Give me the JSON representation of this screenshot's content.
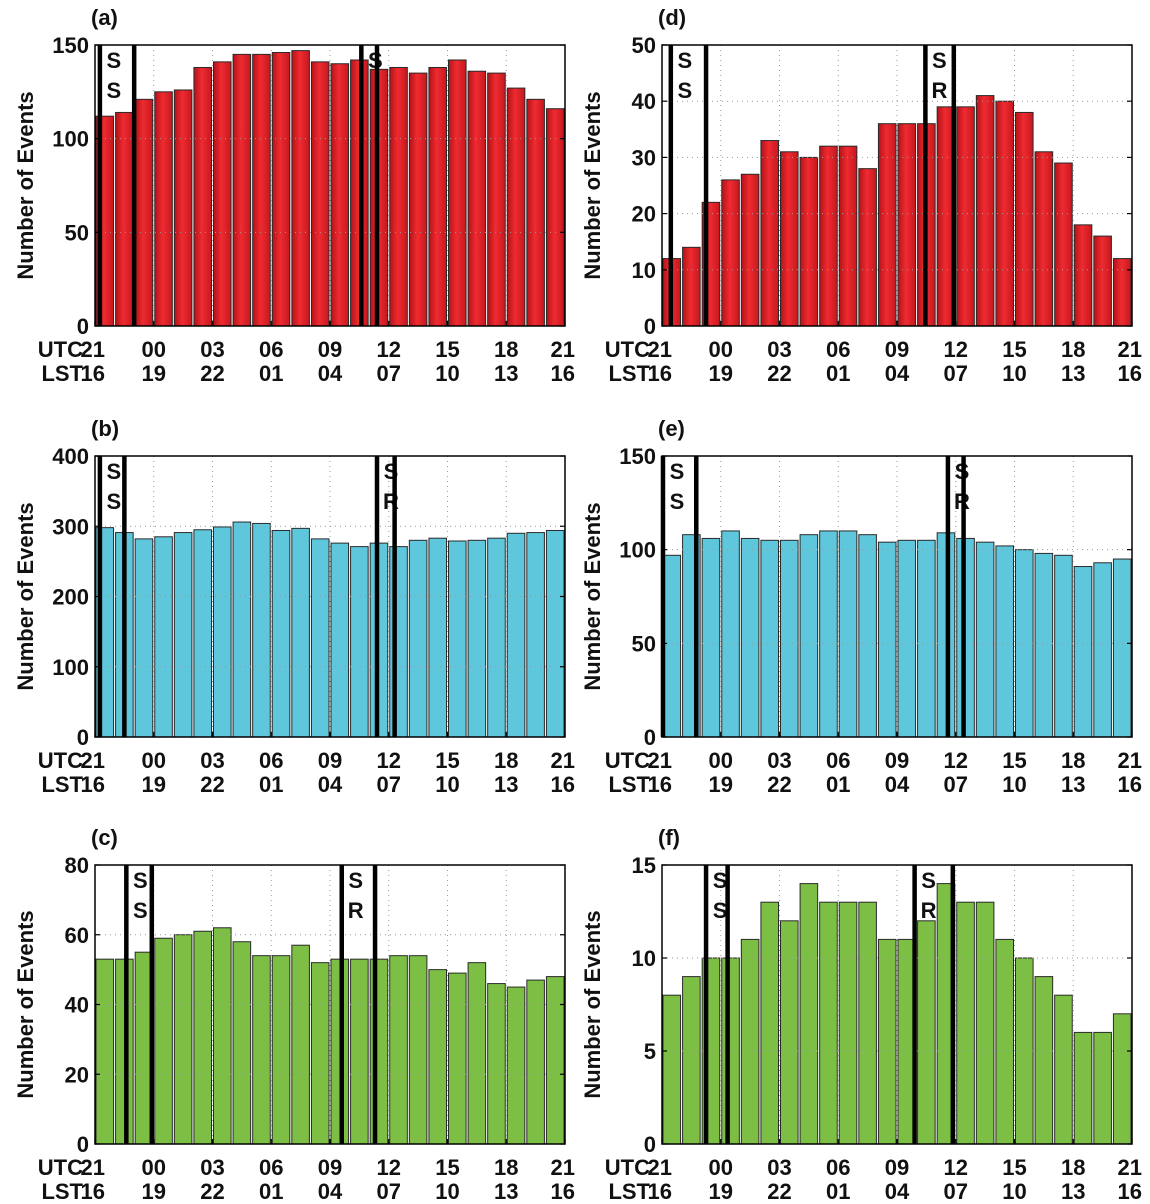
{
  "time_axis": {
    "utc_label": "UTC",
    "lst_label": "LST",
    "utc_ticks": [
      "21",
      "00",
      "03",
      "06",
      "09",
      "12",
      "15",
      "18",
      "21"
    ],
    "lst_ticks": [
      "16",
      "19",
      "22",
      "01",
      "04",
      "07",
      "10",
      "13",
      "16"
    ]
  },
  "chart_data": [
    {
      "panel": "(a)",
      "type": "bar",
      "ylabel": "Number of Events",
      "ylim": [
        0,
        150
      ],
      "yticks": [
        0,
        50,
        100,
        150
      ],
      "color": "#e8262c",
      "grid": true,
      "x_hours_utc": [
        21,
        22,
        23,
        0,
        1,
        2,
        3,
        4,
        5,
        6,
        7,
        8,
        9,
        10,
        11,
        12,
        13,
        14,
        15,
        16,
        17,
        18,
        19,
        20
      ],
      "values": [
        112,
        114,
        121,
        125,
        126,
        138,
        141,
        145,
        145,
        146,
        147,
        141,
        140,
        142,
        137,
        138,
        135,
        138,
        142,
        136,
        135,
        127,
        121,
        116
      ],
      "markers": [
        {
          "hour_utc": 21.25,
          "letters": [
            "S",
            "S"
          ]
        },
        {
          "hour_utc": 23.0,
          "letters": []
        },
        {
          "hour_utc": 10.6,
          "letters": [
            "S"
          ]
        },
        {
          "hour_utc": 11.4,
          "letters": []
        }
      ]
    },
    {
      "panel": "(b)",
      "type": "bar",
      "ylabel": "Number of Events",
      "ylim": [
        0,
        400
      ],
      "yticks": [
        0,
        100,
        200,
        300,
        400
      ],
      "color": "#5fc7dc",
      "grid": true,
      "x_hours_utc": [
        21,
        22,
        23,
        0,
        1,
        2,
        3,
        4,
        5,
        6,
        7,
        8,
        9,
        10,
        11,
        12,
        13,
        14,
        15,
        16,
        17,
        18,
        19,
        20
      ],
      "values": [
        298,
        291,
        282,
        285,
        291,
        295,
        299,
        306,
        304,
        294,
        297,
        282,
        276,
        271,
        276,
        271,
        280,
        283,
        279,
        280,
        283,
        290,
        291,
        294
      ],
      "markers": [
        {
          "hour_utc": 21.25,
          "letters": [
            "S",
            "S"
          ]
        },
        {
          "hour_utc": 22.5,
          "letters": []
        },
        {
          "hour_utc": 11.4,
          "letters": [
            "S",
            "R"
          ]
        },
        {
          "hour_utc": 12.3,
          "letters": []
        }
      ]
    },
    {
      "panel": "(c)",
      "type": "bar",
      "ylabel": "Number of Events",
      "ylim": [
        0,
        80
      ],
      "yticks": [
        0,
        20,
        40,
        60,
        80
      ],
      "color": "#7dbf44",
      "grid": true,
      "x_hours_utc": [
        21,
        22,
        23,
        0,
        1,
        2,
        3,
        4,
        5,
        6,
        7,
        8,
        9,
        10,
        11,
        12,
        13,
        14,
        15,
        16,
        17,
        18,
        19,
        20
      ],
      "values": [
        53,
        53,
        55,
        59,
        60,
        61,
        62,
        58,
        54,
        54,
        57,
        52,
        53,
        53,
        53,
        54,
        54,
        50,
        49,
        52,
        46,
        45,
        47,
        48
      ],
      "markers": [
        {
          "hour_utc": 22.6,
          "letters": [
            "S",
            "S"
          ]
        },
        {
          "hour_utc": 23.9,
          "letters": []
        },
        {
          "hour_utc": 9.6,
          "letters": [
            "S",
            "R"
          ]
        },
        {
          "hour_utc": 11.3,
          "letters": []
        }
      ]
    },
    {
      "panel": "(d)",
      "type": "bar",
      "ylabel": "Number of Events",
      "ylim": [
        0,
        50
      ],
      "yticks": [
        0,
        10,
        20,
        30,
        40,
        50
      ],
      "color": "#e8262c",
      "grid": true,
      "x_hours_utc": [
        21,
        22,
        23,
        0,
        1,
        2,
        3,
        4,
        5,
        6,
        7,
        8,
        9,
        10,
        11,
        12,
        13,
        14,
        15,
        16,
        17,
        18,
        19,
        20
      ],
      "values": [
        12,
        14,
        22,
        26,
        27,
        33,
        31,
        30,
        32,
        32,
        28,
        36,
        36,
        36,
        39,
        39,
        41,
        40,
        38,
        31,
        29,
        18,
        16,
        12
      ],
      "markers": [
        {
          "hour_utc": 21.45,
          "letters": [
            "S",
            "S"
          ]
        },
        {
          "hour_utc": 23.25,
          "letters": []
        },
        {
          "hour_utc": 10.45,
          "letters": [
            "S",
            "R"
          ]
        },
        {
          "hour_utc": 11.9,
          "letters": []
        }
      ]
    },
    {
      "panel": "(e)",
      "type": "bar",
      "ylabel": "Number of Events",
      "ylim": [
        0,
        150
      ],
      "yticks": [
        0,
        50,
        100,
        150
      ],
      "color": "#5fc7dc",
      "grid": true,
      "x_hours_utc": [
        21,
        22,
        23,
        0,
        1,
        2,
        3,
        4,
        5,
        6,
        7,
        8,
        9,
        10,
        11,
        12,
        13,
        14,
        15,
        16,
        17,
        18,
        19,
        20
      ],
      "values": [
        97,
        108,
        106,
        110,
        106,
        105,
        105,
        108,
        110,
        110,
        108,
        104,
        105,
        105,
        109,
        106,
        104,
        102,
        100,
        98,
        97,
        91,
        93,
        95
      ],
      "markers": [
        {
          "hour_utc": 21.05,
          "letters": [
            "S",
            "S"
          ]
        },
        {
          "hour_utc": 22.75,
          "letters": []
        },
        {
          "hour_utc": 11.6,
          "letters": [
            "S",
            "R"
          ]
        },
        {
          "hour_utc": 12.4,
          "letters": []
        }
      ]
    },
    {
      "panel": "(f)",
      "type": "bar",
      "ylabel": "Number of Events",
      "ylim": [
        0,
        15
      ],
      "yticks": [
        0,
        5,
        10,
        15
      ],
      "color": "#7dbf44",
      "grid": true,
      "x_hours_utc": [
        21,
        22,
        23,
        0,
        1,
        2,
        3,
        4,
        5,
        6,
        7,
        8,
        9,
        10,
        11,
        12,
        13,
        14,
        15,
        16,
        17,
        18,
        19,
        20
      ],
      "values": [
        8,
        9,
        10,
        10,
        11,
        13,
        12,
        14,
        13,
        13,
        13,
        11,
        11,
        12,
        14,
        13,
        13,
        11,
        10,
        9,
        8,
        6,
        6,
        7
      ],
      "markers": [
        {
          "hour_utc": 23.25,
          "letters": [
            "S",
            "S"
          ]
        },
        {
          "hour_utc": 0.35,
          "letters": []
        },
        {
          "hour_utc": 9.9,
          "letters": [
            "S",
            "R"
          ]
        },
        {
          "hour_utc": 11.85,
          "letters": []
        }
      ]
    }
  ]
}
